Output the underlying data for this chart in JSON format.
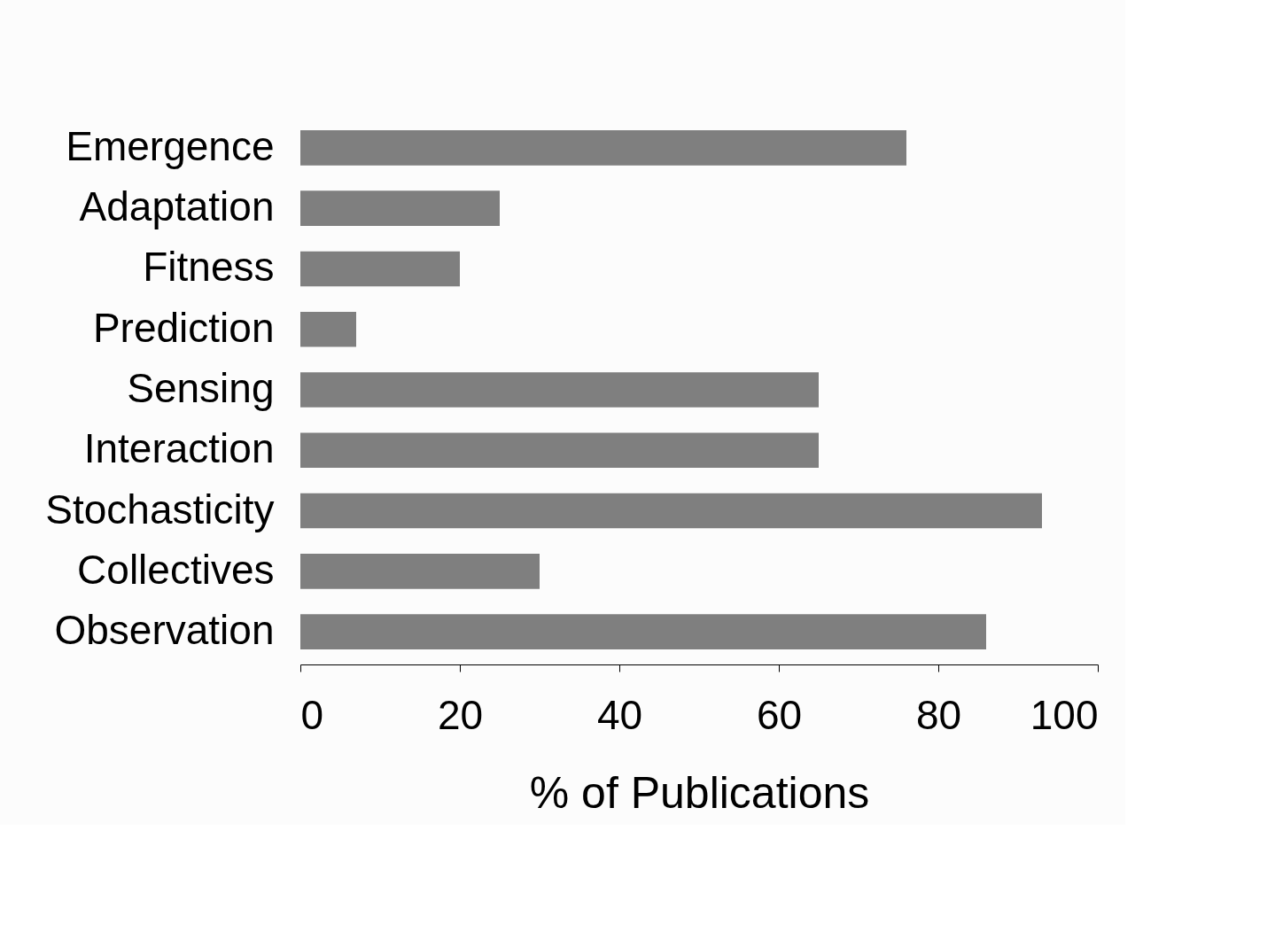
{
  "chart_data": {
    "type": "bar",
    "orientation": "horizontal",
    "xlabel": "% of Publications",
    "categories": [
      "Emergence",
      "Adaptation",
      "Fitness",
      "Prediction",
      "Sensing",
      "Interaction",
      "Stochasticity",
      "Collectives",
      "Observation"
    ],
    "values": [
      76,
      25,
      20,
      7,
      65,
      65,
      93,
      30,
      86
    ],
    "color": "#7f7f7f",
    "xlim": [
      0,
      100
    ],
    "xticks": [
      0,
      20,
      40,
      60,
      80,
      100
    ],
    "grid": false
  }
}
